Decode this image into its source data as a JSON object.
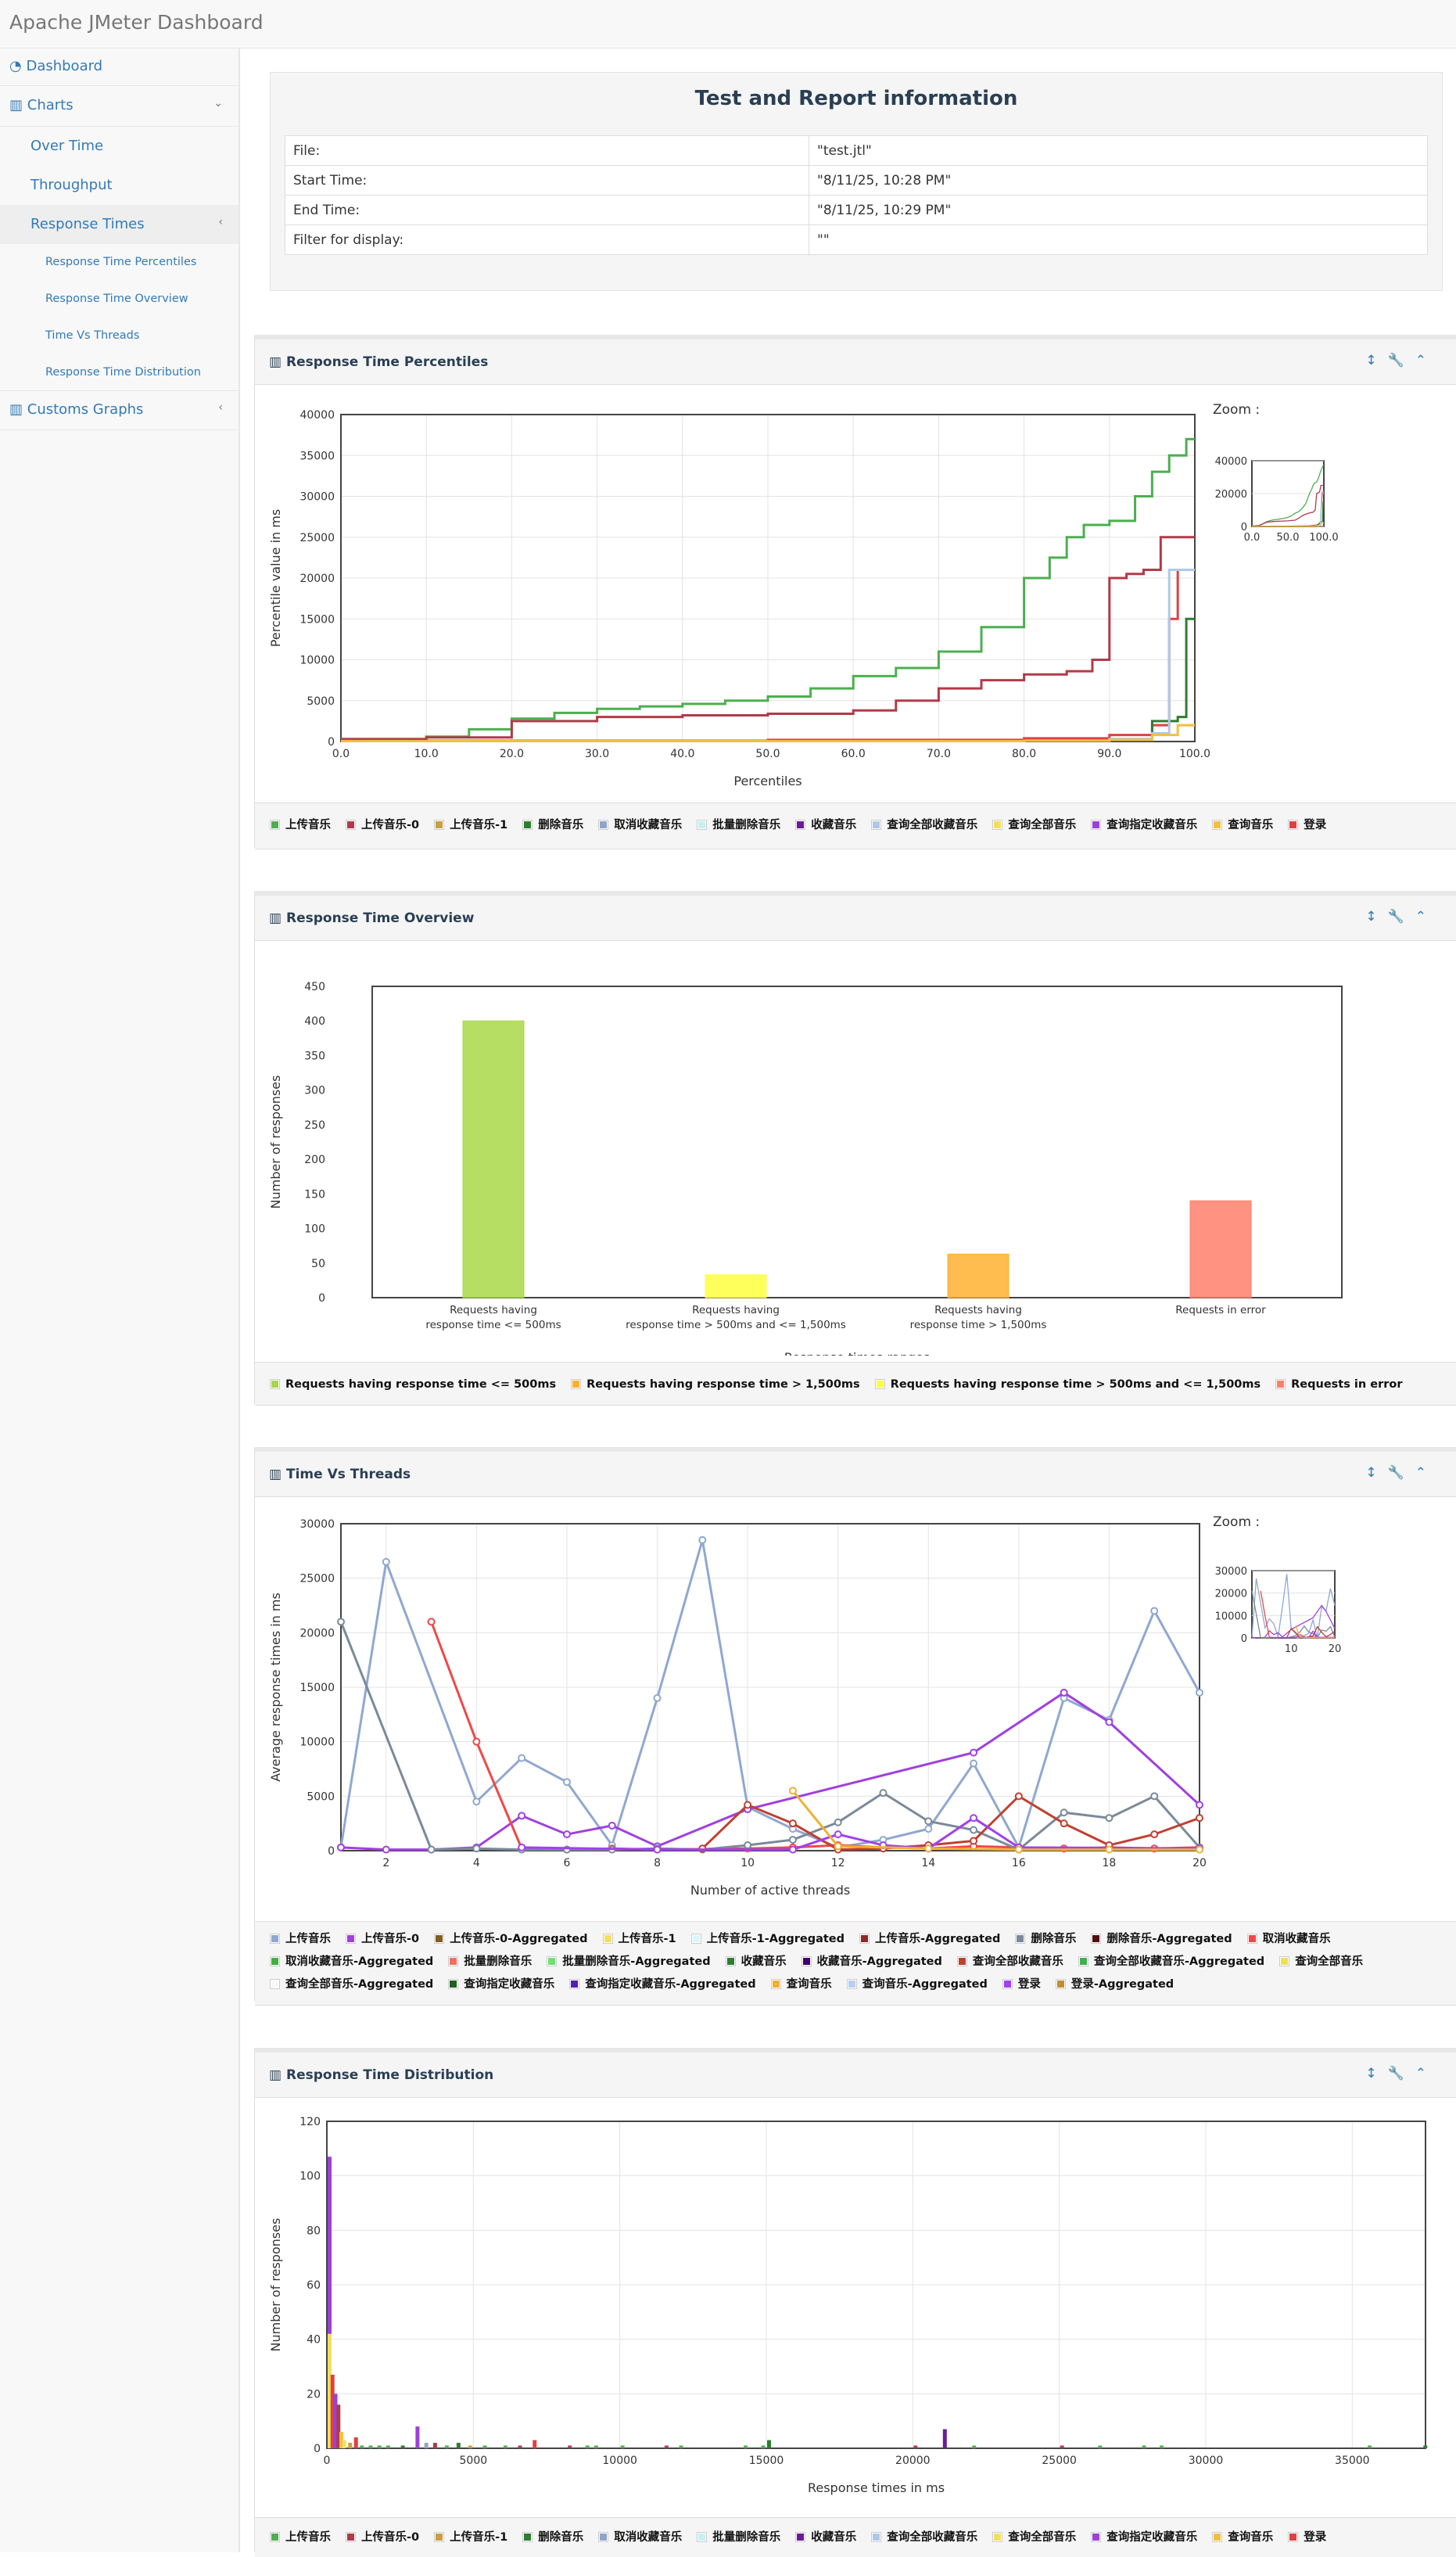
{
  "app": {
    "title": "Apache JMeter Dashboard"
  },
  "sidebar": {
    "items": [
      {
        "label": "Dashboard",
        "icon": "dashboard-icon"
      },
      {
        "label": "Charts",
        "icon": "bar-chart-icon"
      },
      {
        "label": "Over Time"
      },
      {
        "label": "Throughput"
      },
      {
        "label": "Response Times"
      },
      {
        "label": "Response Time Percentiles"
      },
      {
        "label": "Response Time Overview"
      },
      {
        "label": "Time Vs Threads"
      },
      {
        "label": "Response Time Distribution"
      },
      {
        "label": "Customs Graphs",
        "icon": "bar-chart-icon"
      }
    ]
  },
  "info": {
    "title": "Test and Report information",
    "rows": [
      {
        "k": "File:",
        "v": "\"test.jtl\""
      },
      {
        "k": "Start Time:",
        "v": "\"8/11/25, 10:28 PM\""
      },
      {
        "k": "End Time:",
        "v": "\"8/11/25, 10:29 PM\""
      },
      {
        "k": "Filter for display:",
        "v": "\"\""
      }
    ]
  },
  "panels": {
    "percentiles": {
      "title": "Response Time Percentiles",
      "zoom": "Zoom :"
    },
    "overview": {
      "title": "Response Time Overview"
    },
    "threads": {
      "title": "Time Vs Threads",
      "zoom": "Zoom :"
    },
    "distribution": {
      "title": "Response Time Distribution"
    }
  },
  "chart_data": [
    {
      "id": "percentiles",
      "type": "line",
      "xlabel": "Percentiles",
      "ylabel": "Percentile value in ms",
      "xlim": [
        0,
        100
      ],
      "ylim": [
        0,
        40000
      ],
      "xticks": [
        "0.0",
        "10.0",
        "20.0",
        "30.0",
        "40.0",
        "50.0",
        "60.0",
        "70.0",
        "80.0",
        "90.0",
        "100.0"
      ],
      "yticks": [
        "0",
        "5000",
        "10000",
        "15000",
        "20000",
        "25000",
        "30000",
        "35000",
        "40000"
      ],
      "zoom_xticks": [
        "0.0",
        "50.0",
        "100.0"
      ],
      "zoom_yticks": [
        "0",
        "20000",
        "40000"
      ],
      "legend": [
        "上传音乐",
        "上传音乐-0",
        "上传音乐-1",
        "删除音乐",
        "取消收藏音乐",
        "批量删除音乐",
        "收藏音乐",
        "查询全部收藏音乐",
        "查询全部音乐",
        "查询指定收藏音乐",
        "查询音乐",
        "登录"
      ],
      "colors": [
        "#4caf50",
        "#b23a48",
        "#c8a040",
        "#2e7d32",
        "#90a4c8",
        "#c8f0f0",
        "#6a1b9a",
        "#b0c8e8",
        "#f0e060",
        "#9b40d8",
        "#f0c040",
        "#e04040"
      ],
      "series": [
        {
          "name": "上传音乐",
          "x": [
            0,
            10,
            15,
            20,
            25,
            30,
            35,
            40,
            45,
            50,
            55,
            60,
            65,
            70,
            75,
            80,
            83,
            85,
            87,
            90,
            93,
            95,
            97,
            99,
            100
          ],
          "y": [
            300,
            600,
            1500,
            2800,
            3500,
            4000,
            4300,
            4600,
            5000,
            5500,
            6500,
            8000,
            9000,
            11000,
            14000,
            20000,
            22500,
            25000,
            26500,
            27000,
            30000,
            33000,
            35000,
            37000,
            37000
          ]
        },
        {
          "name": "上传音乐-0",
          "x": [
            0,
            10,
            20,
            30,
            40,
            50,
            60,
            65,
            70,
            75,
            80,
            85,
            88,
            90,
            92,
            94,
            96,
            100
          ],
          "y": [
            300,
            500,
            2500,
            3000,
            3200,
            3400,
            3800,
            5000,
            6500,
            7500,
            8200,
            8600,
            10000,
            20000,
            20500,
            21000,
            25000,
            25000
          ]
        },
        {
          "name": "登录",
          "x": [
            0,
            50,
            80,
            90,
            95,
            97,
            98,
            100
          ],
          "y": [
            100,
            200,
            400,
            800,
            2000,
            15000,
            21000,
            21000
          ]
        },
        {
          "name": "删除音乐",
          "x": [
            0,
            80,
            90,
            95,
            98,
            99,
            100
          ],
          "y": [
            50,
            100,
            300,
            2500,
            3000,
            15000,
            15000
          ]
        },
        {
          "name": "查询全部收藏音乐",
          "x": [
            0,
            80,
            90,
            95,
            97,
            99,
            100
          ],
          "y": [
            50,
            100,
            300,
            1000,
            21000,
            21000,
            21000
          ]
        },
        {
          "name": "查询音乐",
          "x": [
            0,
            80,
            90,
            95,
            98,
            100
          ],
          "y": [
            50,
            100,
            200,
            800,
            2000,
            2000
          ]
        }
      ]
    },
    {
      "id": "overview",
      "type": "bar",
      "xlabel": "Response times ranges",
      "ylabel": "Number of responses",
      "ylim": [
        0,
        450
      ],
      "yticks": [
        "0",
        "50",
        "100",
        "150",
        "200",
        "250",
        "300",
        "350",
        "400",
        "450"
      ],
      "categories": [
        "Requests having\nresponse time <= 500ms",
        "Requests having\nresponse time > 500ms and <= 1,500ms",
        "Requests having\nresponse time > 1,500ms",
        "Requests in error"
      ],
      "values": [
        400,
        33,
        63,
        140
      ],
      "colors": [
        "#a8d848",
        "#ffff40",
        "#ffb030",
        "#ff7f6a"
      ],
      "legend": [
        "Requests having response time <= 500ms",
        "Requests having response time > 1,500ms",
        "Requests having response time > 500ms and <= 1,500ms",
        "Requests in error"
      ],
      "legend_colors": [
        "#a8d848",
        "#ffb030",
        "#ffff40",
        "#ff7f6a"
      ]
    },
    {
      "id": "threads",
      "type": "line",
      "xlabel": "Number of active threads",
      "ylabel": "Average response times in ms",
      "xlim": [
        1,
        20
      ],
      "ylim": [
        0,
        30000
      ],
      "xticks": [
        "2",
        "4",
        "6",
        "8",
        "10",
        "12",
        "14",
        "16",
        "18",
        "20"
      ],
      "yticks": [
        "0",
        "5000",
        "10000",
        "15000",
        "20000",
        "25000",
        "30000"
      ],
      "zoom_xticks": [
        "10",
        "20"
      ],
      "zoom_yticks": [
        "0",
        "10000",
        "20000",
        "30000"
      ],
      "legend": [
        "上传音乐",
        "上传音乐-0",
        "上传音乐-0-Aggregated",
        "上传音乐-1",
        "上传音乐-1-Aggregated",
        "上传音乐-Aggregated",
        "删除音乐",
        "删除音乐-Aggregated",
        "取消收藏音乐",
        "取消收藏音乐-Aggregated",
        "批量删除音乐",
        "批量删除音乐-Aggregated",
        "收藏音乐",
        "收藏音乐-Aggregated",
        "查询全部收藏音乐",
        "查询全部收藏音乐-Aggregated",
        "查询全部音乐",
        "查询全部音乐-Aggregated",
        "查询指定收藏音乐",
        "查询指定收藏音乐-Aggregated",
        "查询音乐",
        "查询音乐-Aggregated",
        "登录",
        "登录-Aggregated"
      ],
      "colors": [
        "#90a8d0",
        "#a040e0",
        "#806020",
        "#f0e060",
        "#d8f8f8",
        "#902828",
        "#7a8a9a",
        "#501010",
        "#f04848",
        "#40b040",
        "#f07060",
        "#70e070",
        "#2e7d32",
        "#400070",
        "#c04030",
        "#40b050",
        "#f0e050",
        "#f8f8f8",
        "#206020",
        "#5020b0",
        "#f0b030",
        "#b8d0f0",
        "#a040f0",
        "#c09030"
      ],
      "series": [
        {
          "name": "上传音乐",
          "x": [
            1,
            2,
            4,
            5,
            6,
            7,
            8,
            9,
            10,
            11,
            12,
            13,
            14,
            15,
            16,
            17,
            18,
            19,
            20
          ],
          "y": [
            300,
            26500,
            4500,
            8500,
            6300,
            500,
            14000,
            28500,
            4000,
            2000,
            300,
            1000,
            2000,
            8000,
            300,
            14000,
            12000,
            22000,
            14500
          ]
        },
        {
          "name": "上传音乐-0",
          "x": [
            1,
            2,
            3,
            4,
            5,
            6,
            7,
            8,
            10,
            15,
            17,
            18,
            20
          ],
          "y": [
            300,
            100,
            100,
            300,
            3200,
            1500,
            2300,
            400,
            3800,
            9000,
            14500,
            11800,
            4200
          ]
        },
        {
          "name": "取消收藏音乐",
          "x": [
            3,
            4,
            5,
            6,
            7,
            8,
            10,
            11,
            12,
            13,
            14,
            15,
            16,
            17,
            18,
            19,
            20
          ],
          "y": [
            21000,
            10000,
            200,
            100,
            200,
            100,
            200,
            300,
            500,
            300,
            200,
            400,
            300,
            200,
            300,
            200,
            300
          ]
        },
        {
          "name": "删除音乐",
          "x": [
            1,
            3,
            4,
            5,
            6,
            7,
            8,
            9,
            10,
            11,
            12,
            13,
            14,
            15,
            16,
            17,
            18,
            19,
            20
          ],
          "y": [
            21000,
            100,
            200,
            100,
            100,
            100,
            200,
            100,
            500,
            1000,
            2600,
            5300,
            2700,
            1900,
            100,
            3500,
            3000,
            5000,
            300
          ]
        },
        {
          "name": "查询全部收藏音乐",
          "x": [
            9,
            10,
            11,
            12,
            13,
            14,
            15,
            16,
            17,
            18,
            19,
            20
          ],
          "y": [
            200,
            4200,
            2500,
            100,
            200,
            500,
            900,
            5000,
            2500,
            500,
            1500,
            3000
          ]
        },
        {
          "name": "登录",
          "x": [
            5,
            8,
            11,
            12,
            13,
            14,
            15,
            16,
            20
          ],
          "y": [
            300,
            100,
            100,
            1500,
            500,
            200,
            3000,
            300,
            200
          ]
        },
        {
          "name": "查询音乐",
          "x": [
            11,
            12,
            14,
            16,
            18,
            20
          ],
          "y": [
            5500,
            400,
            200,
            100,
            100,
            100
          ]
        }
      ]
    },
    {
      "id": "distribution",
      "type": "bar",
      "xlabel": "Response times in ms",
      "ylabel": "Number of responses",
      "xlim": [
        0,
        37500
      ],
      "ylim": [
        0,
        120
      ],
      "xticks": [
        "0",
        "5000",
        "10000",
        "15000",
        "20000",
        "25000",
        "30000",
        "35000"
      ],
      "yticks": [
        "0",
        "20",
        "40",
        "60",
        "80",
        "100",
        "120"
      ],
      "legend": [
        "上传音乐",
        "上传音乐-0",
        "上传音乐-1",
        "删除音乐",
        "取消收藏音乐",
        "批量删除音乐",
        "收藏音乐",
        "查询全部收藏音乐",
        "查询全部音乐",
        "查询指定收藏音乐",
        "查询音乐",
        "登录"
      ],
      "colors": [
        "#4caf50",
        "#b23a48",
        "#c8a040",
        "#2e7d32",
        "#90a4c8",
        "#c8f0f0",
        "#6a1b9a",
        "#b0c8e8",
        "#f0e060",
        "#9b40d8",
        "#f0c040",
        "#e04040"
      ],
      "bars": [
        {
          "x": 0,
          "y": 107,
          "c": 9
        },
        {
          "x": 0,
          "y": 42,
          "c": 8
        },
        {
          "x": 100,
          "y": 27,
          "c": 11
        },
        {
          "x": 200,
          "y": 20,
          "c": 9
        },
        {
          "x": 300,
          "y": 16,
          "c": 1
        },
        {
          "x": 400,
          "y": 6,
          "c": 10
        },
        {
          "x": 500,
          "y": 3,
          "c": 8
        },
        {
          "x": 700,
          "y": 2,
          "c": 2
        },
        {
          "x": 900,
          "y": 4,
          "c": 11
        },
        {
          "x": 1100,
          "y": 1,
          "c": 0
        },
        {
          "x": 1400,
          "y": 1,
          "c": 0
        },
        {
          "x": 1700,
          "y": 1,
          "c": 0
        },
        {
          "x": 2000,
          "y": 1,
          "c": 0
        },
        {
          "x": 2500,
          "y": 1,
          "c": 3
        },
        {
          "x": 3000,
          "y": 8,
          "c": 9
        },
        {
          "x": 3300,
          "y": 2,
          "c": 4
        },
        {
          "x": 3600,
          "y": 2,
          "c": 1
        },
        {
          "x": 4000,
          "y": 1,
          "c": 0
        },
        {
          "x": 4400,
          "y": 2,
          "c": 3
        },
        {
          "x": 4800,
          "y": 1,
          "c": 2
        },
        {
          "x": 5300,
          "y": 1,
          "c": 0
        },
        {
          "x": 6000,
          "y": 1,
          "c": 0
        },
        {
          "x": 6500,
          "y": 1,
          "c": 1
        },
        {
          "x": 7000,
          "y": 3,
          "c": 11
        },
        {
          "x": 8200,
          "y": 1,
          "c": 1
        },
        {
          "x": 8800,
          "y": 1,
          "c": 0
        },
        {
          "x": 9100,
          "y": 1,
          "c": 0
        },
        {
          "x": 10000,
          "y": 1,
          "c": 0
        },
        {
          "x": 11500,
          "y": 1,
          "c": 1
        },
        {
          "x": 12000,
          "y": 1,
          "c": 0
        },
        {
          "x": 14200,
          "y": 1,
          "c": 0
        },
        {
          "x": 14800,
          "y": 1,
          "c": 0
        },
        {
          "x": 15000,
          "y": 3,
          "c": 3
        },
        {
          "x": 20000,
          "y": 1,
          "c": 1
        },
        {
          "x": 21000,
          "y": 7,
          "c": 6
        },
        {
          "x": 22000,
          "y": 1,
          "c": 0
        },
        {
          "x": 25000,
          "y": 1,
          "c": 1
        },
        {
          "x": 26300,
          "y": 1,
          "c": 0
        },
        {
          "x": 27800,
          "y": 1,
          "c": 0
        },
        {
          "x": 28400,
          "y": 1,
          "c": 0
        },
        {
          "x": 35500,
          "y": 1,
          "c": 0
        },
        {
          "x": 37400,
          "y": 1,
          "c": 3
        }
      ]
    }
  ]
}
